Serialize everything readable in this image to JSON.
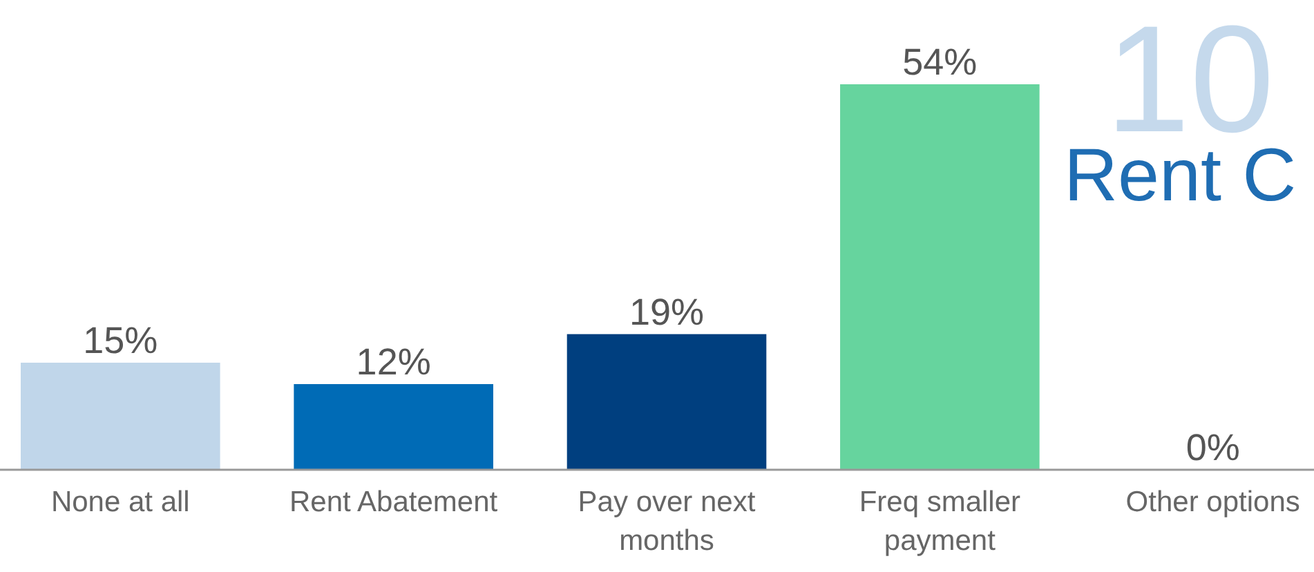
{
  "chart_data": {
    "type": "bar",
    "title": "Rent C",
    "annotations": [
      "10"
    ],
    "categories": [
      "None at all",
      "Rent Abatement",
      "Pay over next months",
      "Freq smaller payment",
      "Other options"
    ],
    "values": [
      15,
      12,
      19,
      54,
      0
    ],
    "colors": [
      "#c0d6ea",
      "#006bb6",
      "#003f7f",
      "#66d49e",
      "#66d49e"
    ],
    "value_labels": [
      "15%",
      "12%",
      "19%",
      "54%",
      "0%"
    ]
  }
}
